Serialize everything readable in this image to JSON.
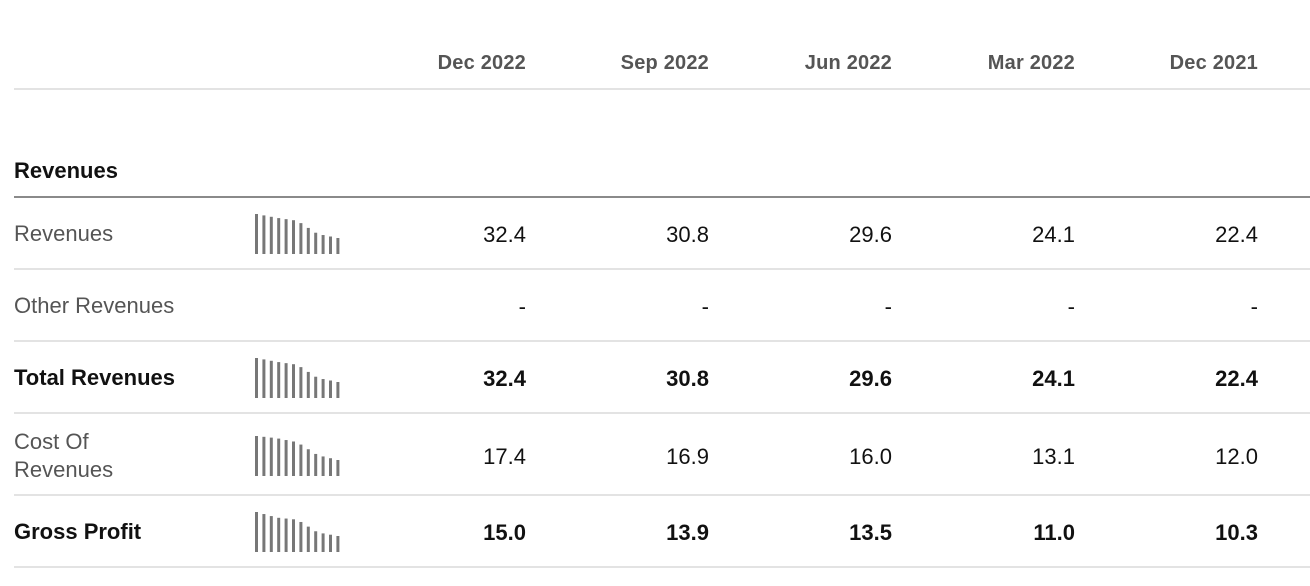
{
  "columns": [
    "Dec 2022",
    "Sep 2022",
    "Jun 2022",
    "Mar 2022",
    "Dec 2021"
  ],
  "section": {
    "title": "Revenues"
  },
  "rows": [
    {
      "label": "Revenues",
      "bold": false,
      "has_sparkline": true,
      "values": [
        "32.4",
        "30.8",
        "29.6",
        "24.1",
        "22.4"
      ]
    },
    {
      "label": "Other Revenues",
      "bold": false,
      "has_sparkline": false,
      "values": [
        "-",
        "-",
        "-",
        "-",
        "-"
      ]
    },
    {
      "label": "Total Revenues",
      "bold": true,
      "has_sparkline": true,
      "values": [
        "32.4",
        "30.8",
        "29.6",
        "24.1",
        "22.4"
      ]
    },
    {
      "label": "Cost Of Revenues",
      "bold": false,
      "has_sparkline": true,
      "values": [
        "17.4",
        "16.9",
        "16.0",
        "13.1",
        "12.0"
      ]
    },
    {
      "label": "Gross Profit",
      "bold": true,
      "has_sparkline": true,
      "values": [
        "15.0",
        "13.9",
        "13.5",
        "11.0",
        "10.3"
      ]
    }
  ],
  "colors": {
    "sparkline": "#777777",
    "label_muted": "#555555",
    "text": "#111111"
  }
}
